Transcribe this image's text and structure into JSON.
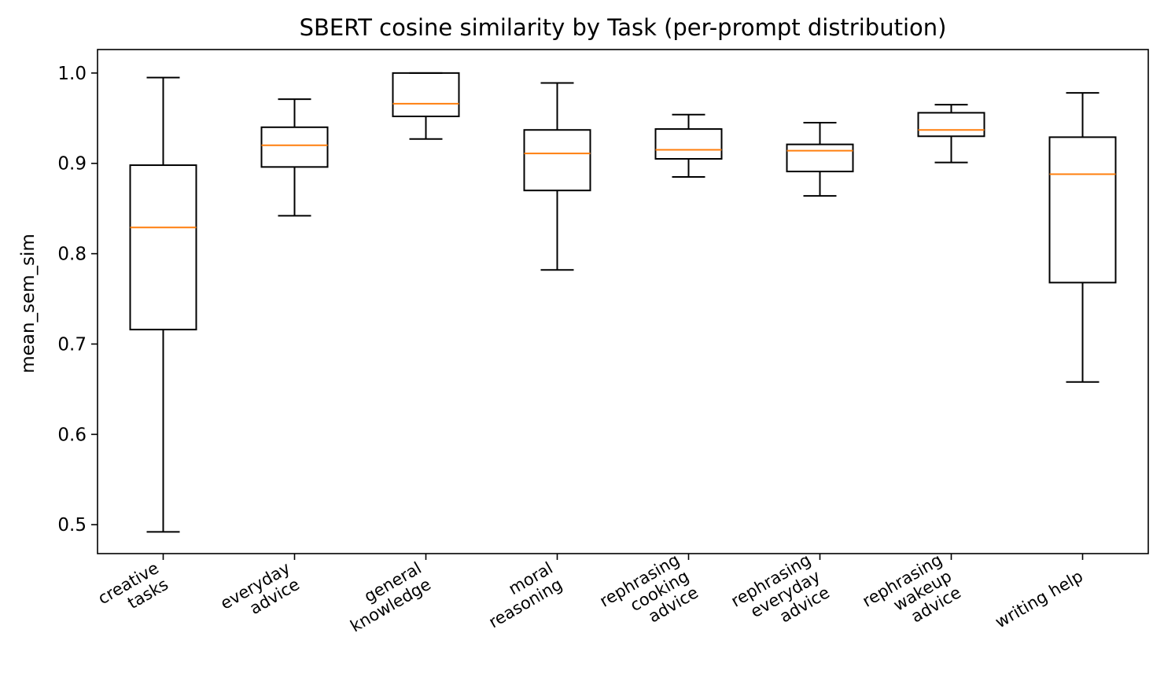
{
  "chart_data": {
    "type": "box",
    "title": "SBERT cosine similarity by Task (per-prompt distribution)",
    "xlabel": "",
    "ylabel": "mean_sem_sim",
    "ylim": [
      0.468,
      1.026
    ],
    "yticks": [
      0.5,
      0.6,
      0.7,
      0.8,
      0.9,
      1.0
    ],
    "ytick_labels": [
      "0.5",
      "0.6",
      "0.7",
      "0.8",
      "0.9",
      "1.0"
    ],
    "grid": false,
    "colors": {
      "box": "#000000",
      "median": "#ff7f0e"
    },
    "categories": [
      [
        "creative",
        "tasks"
      ],
      [
        "everyday",
        "advice"
      ],
      [
        "general",
        "knowledge"
      ],
      [
        "moral",
        "reasoning"
      ],
      [
        "rephrasing",
        "cooking",
        "advice"
      ],
      [
        "rephrasing",
        "everyday",
        "advice"
      ],
      [
        "rephrasing",
        "wakeup",
        "advice"
      ],
      [
        "writing help"
      ]
    ],
    "boxes": [
      {
        "whisker_low": 0.492,
        "q1": 0.716,
        "median": 0.829,
        "q3": 0.898,
        "whisker_high": 0.995
      },
      {
        "whisker_low": 0.842,
        "q1": 0.896,
        "median": 0.92,
        "q3": 0.94,
        "whisker_high": 0.971
      },
      {
        "whisker_low": 0.927,
        "q1": 0.952,
        "median": 0.966,
        "q3": 1.0,
        "whisker_high": 1.0
      },
      {
        "whisker_low": 0.782,
        "q1": 0.87,
        "median": 0.911,
        "q3": 0.937,
        "whisker_high": 0.989
      },
      {
        "whisker_low": 0.885,
        "q1": 0.905,
        "median": 0.915,
        "q3": 0.938,
        "whisker_high": 0.954
      },
      {
        "whisker_low": 0.864,
        "q1": 0.891,
        "median": 0.914,
        "q3": 0.921,
        "whisker_high": 0.945
      },
      {
        "whisker_low": 0.901,
        "q1": 0.93,
        "median": 0.937,
        "q3": 0.956,
        "whisker_high": 0.965
      },
      {
        "whisker_low": 0.658,
        "q1": 0.768,
        "median": 0.888,
        "q3": 0.929,
        "whisker_high": 0.978
      }
    ]
  }
}
